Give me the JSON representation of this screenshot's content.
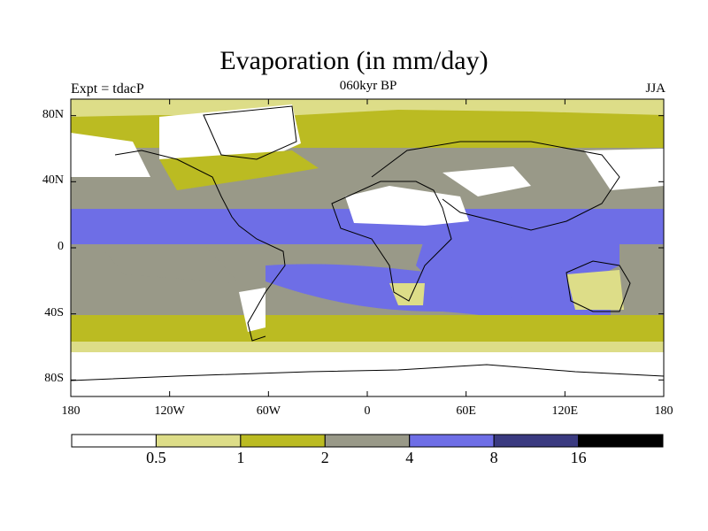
{
  "title": "Evaporation (in mm/day)",
  "subtitle": "060kyr BP",
  "left_label": "Expt = tdacP",
  "right_label": "JJA",
  "map": {
    "lon_range": [
      -180,
      180
    ],
    "lat_range": [
      -90,
      90
    ],
    "x_ticks": [
      {
        "value": -180,
        "label": "180"
      },
      {
        "value": -120,
        "label": "120W"
      },
      {
        "value": -60,
        "label": "60W"
      },
      {
        "value": 0,
        "label": "0"
      },
      {
        "value": 60,
        "label": "60E"
      },
      {
        "value": 120,
        "label": "120E"
      },
      {
        "value": 180,
        "label": "180"
      }
    ],
    "y_ticks": [
      {
        "value": 80,
        "label": "80N"
      },
      {
        "value": 40,
        "label": "40N"
      },
      {
        "value": 0,
        "label": "0"
      },
      {
        "value": -40,
        "label": "40S"
      },
      {
        "value": -80,
        "label": "80S"
      }
    ]
  },
  "colorbar": {
    "colors": [
      "#ffffff",
      "#dddd88",
      "#bbbb22",
      "#999988",
      "#6e6ee6",
      "#3a3a80",
      "#000000"
    ],
    "labels": [
      "0.5",
      "1",
      "2",
      "4",
      "8",
      "16"
    ]
  }
}
